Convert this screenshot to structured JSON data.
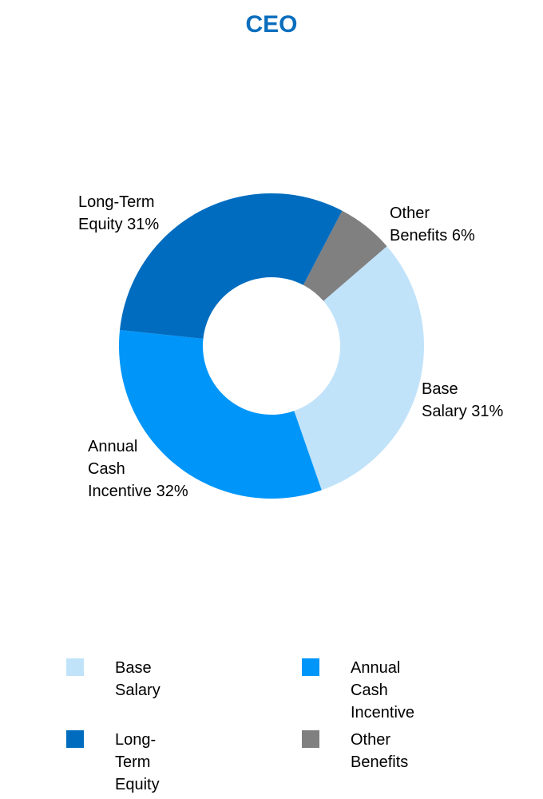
{
  "chart_data": {
    "type": "pie",
    "title": "CEO",
    "donut": true,
    "categories": [
      "Base Salary",
      "Annual Cash Incentive",
      "Long-Term Equity",
      "Other Benefits"
    ],
    "values": [
      31,
      32,
      31,
      6
    ],
    "unit": "%",
    "colors": [
      "#C1E3FA",
      "#0096F9",
      "#006CBF",
      "#808080"
    ],
    "data_labels": [
      "Base\nSalary 31%",
      "Annual\nCash\nIncentive 32%",
      "Long-Term\nEquity 31%",
      "Other\nBenefits 6%"
    ],
    "legend": {
      "position": "bottom",
      "entries": [
        {
          "label": "Base\nSalary",
          "color": "#C1E3FA"
        },
        {
          "label": "Annual\nCash\nIncentive",
          "color": "#0096F9"
        },
        {
          "label": "Long-Term Equity",
          "color": "#006CBF"
        },
        {
          "label": "Other\nBenefits",
          "color": "#808080"
        }
      ]
    }
  }
}
